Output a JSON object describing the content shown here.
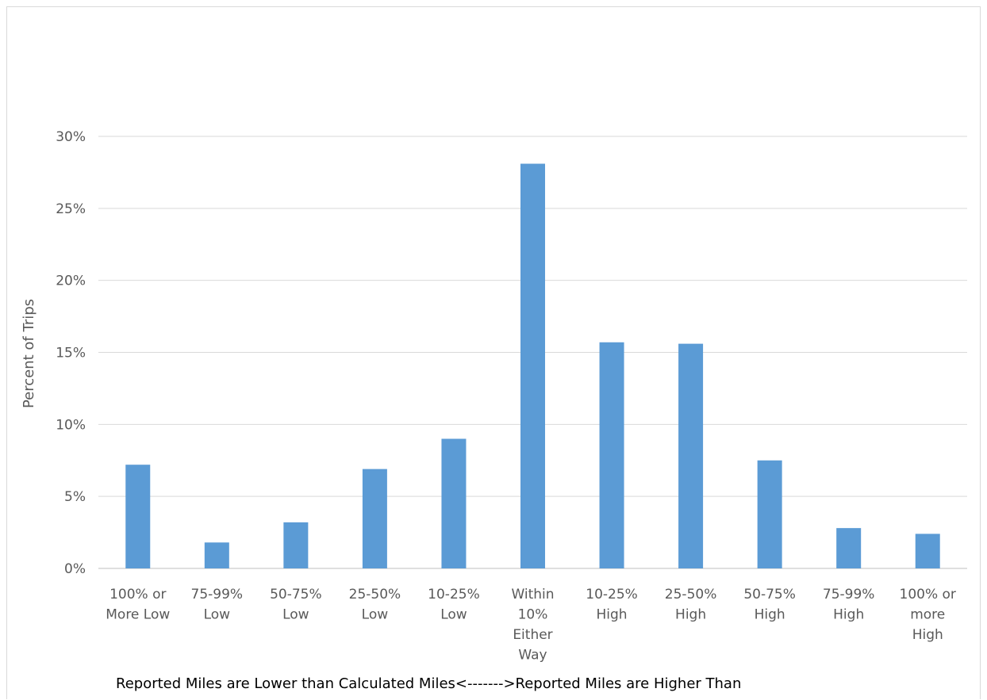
{
  "chart_data": {
    "type": "bar",
    "categories": [
      "100% or More Low",
      "75-99% Low",
      "50-75% Low",
      "25-50% Low",
      "10-25% Low",
      "Within 10% Either Way",
      "10-25% High",
      "25-50% High",
      "50-75% High",
      "75-99% High",
      "100% or more High"
    ],
    "category_lines": [
      [
        "100% or",
        "More Low"
      ],
      [
        "75-99%",
        "Low"
      ],
      [
        "50-75%",
        "Low"
      ],
      [
        "25-50%",
        "Low"
      ],
      [
        "10-25%",
        "Low"
      ],
      [
        "Within",
        "10%",
        "Either",
        "Way"
      ],
      [
        "10-25%",
        "High"
      ],
      [
        "25-50%",
        "High"
      ],
      [
        "50-75%",
        "High"
      ],
      [
        "75-99%",
        "High"
      ],
      [
        "100% or",
        "more",
        "High"
      ]
    ],
    "values": [
      7.2,
      1.8,
      3.2,
      6.9,
      9.0,
      28.1,
      15.7,
      15.6,
      7.5,
      2.8,
      2.4
    ],
    "title": "",
    "xlabel": "Reported Miles are Lower than Calculated Miles<------->Reported Miles are Higher Than",
    "ylabel": "Percent of Trips",
    "ylim": [
      0,
      30
    ],
    "yticks": [
      0,
      5,
      10,
      15,
      20,
      25,
      30
    ],
    "ytick_labels": [
      "0%",
      "5%",
      "10%",
      "15%",
      "20%",
      "25%",
      "30%"
    ],
    "bar_color": "#5B9BD5",
    "grid": true,
    "legend": "none"
  }
}
